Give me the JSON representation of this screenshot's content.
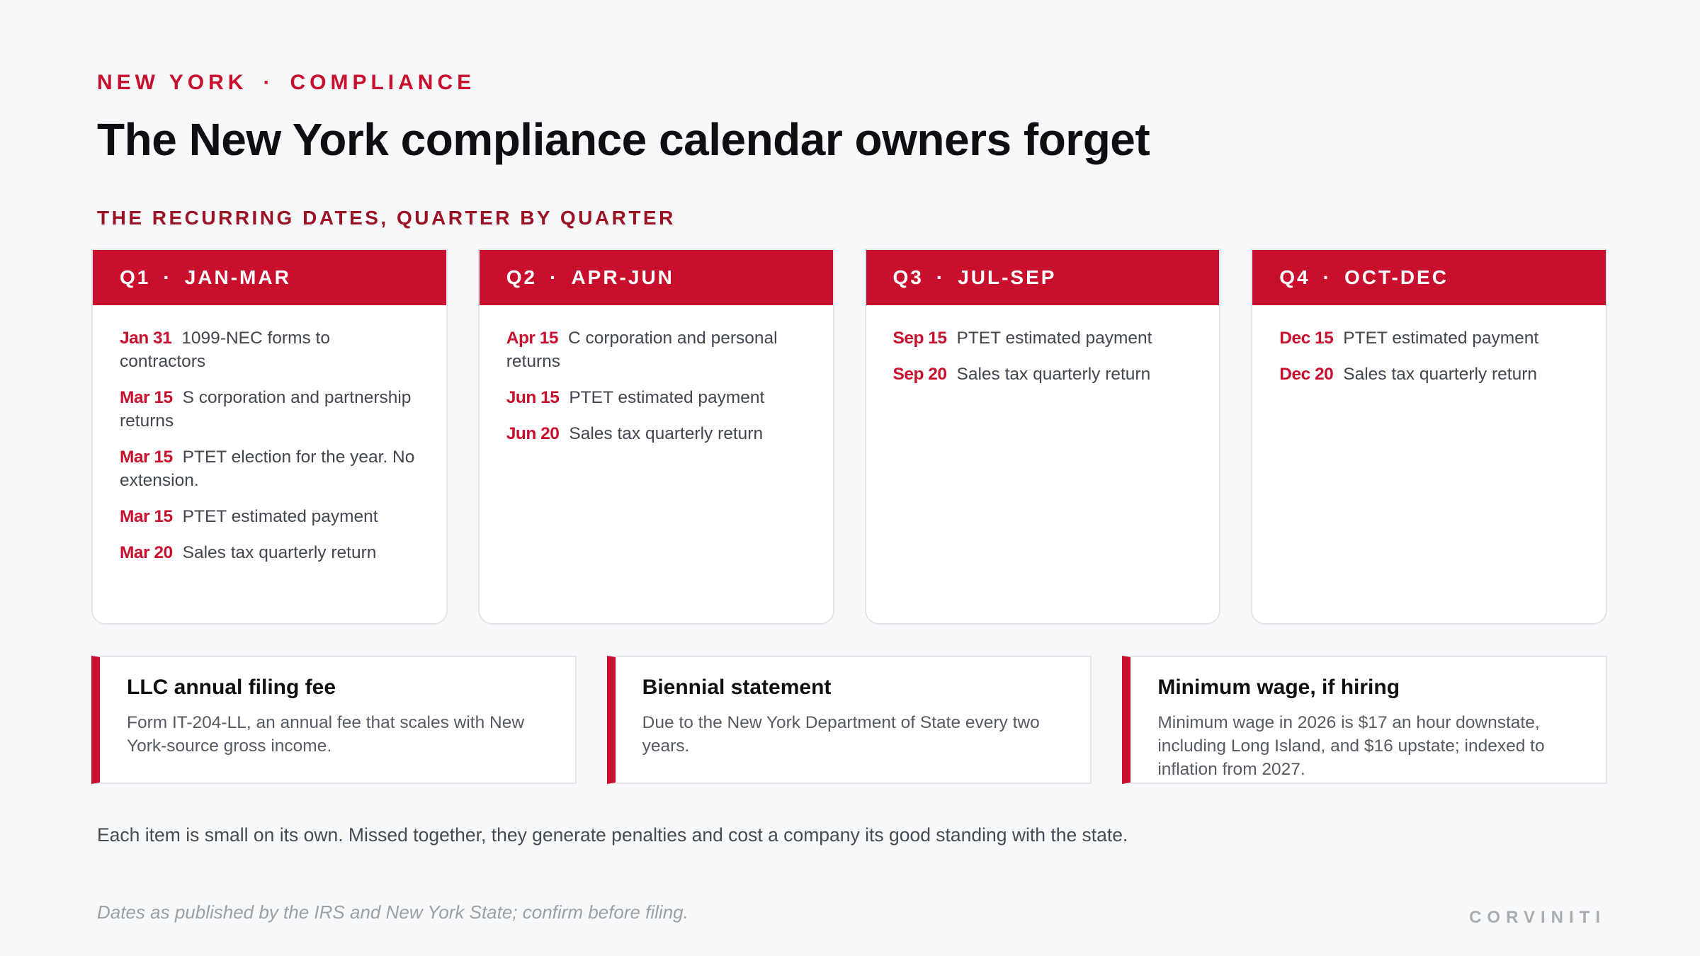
{
  "header": {
    "eyebrow_left": "NEW YORK",
    "eyebrow_sep": "·",
    "eyebrow_right": "COMPLIANCE",
    "title": "The New York compliance calendar owners forget",
    "section_label": "THE RECURRING DATES, QUARTER BY QUARTER"
  },
  "quarters": [
    {
      "code": "Q1",
      "sep": "·",
      "range": "JAN-MAR",
      "items": [
        {
          "date": "Jan 31",
          "text": "1099-NEC forms to contractors"
        },
        {
          "date": "Mar 15",
          "text": "S corporation and partnership returns"
        },
        {
          "date": "Mar 15",
          "text": "PTET election for the year. No extension."
        },
        {
          "date": "Mar 15",
          "text": "PTET estimated payment"
        },
        {
          "date": "Mar 20",
          "text": "Sales tax quarterly return"
        }
      ]
    },
    {
      "code": "Q2",
      "sep": "·",
      "range": "APR-JUN",
      "items": [
        {
          "date": "Apr 15",
          "text": "C corporation and personal returns"
        },
        {
          "date": "Jun 15",
          "text": "PTET estimated payment"
        },
        {
          "date": "Jun 20",
          "text": "Sales tax quarterly return"
        }
      ]
    },
    {
      "code": "Q3",
      "sep": "·",
      "range": "JUL-SEP",
      "items": [
        {
          "date": "Sep 15",
          "text": "PTET estimated payment"
        },
        {
          "date": "Sep 20",
          "text": "Sales tax quarterly return"
        }
      ]
    },
    {
      "code": "Q4",
      "sep": "·",
      "range": "OCT-DEC",
      "items": [
        {
          "date": "Dec 15",
          "text": "PTET estimated payment"
        },
        {
          "date": "Dec 20",
          "text": "Sales tax quarterly return"
        }
      ]
    }
  ],
  "notes": [
    {
      "title": "LLC annual filing fee",
      "text": "Form IT-204-LL, an annual fee that scales with New York-source gross income."
    },
    {
      "title": "Biennial statement",
      "text": "Due to the New York Department of State every two years."
    },
    {
      "title": "Minimum wage, if hiring",
      "text": "Minimum wage in 2026 is $17 an hour downstate, including Long Island, and $16 upstate; indexed to inflation from 2027."
    }
  ],
  "summary": "Each item is small on its own. Missed together, they generate penalties and cost a company its good standing with the state.",
  "footnote": "Dates as published by the IRS and New York State; confirm before filing.",
  "brand": "CORVINITI",
  "colors": {
    "accent": "#c8102e",
    "accent_dark": "#9a1224",
    "background": "#f7f8fa"
  }
}
